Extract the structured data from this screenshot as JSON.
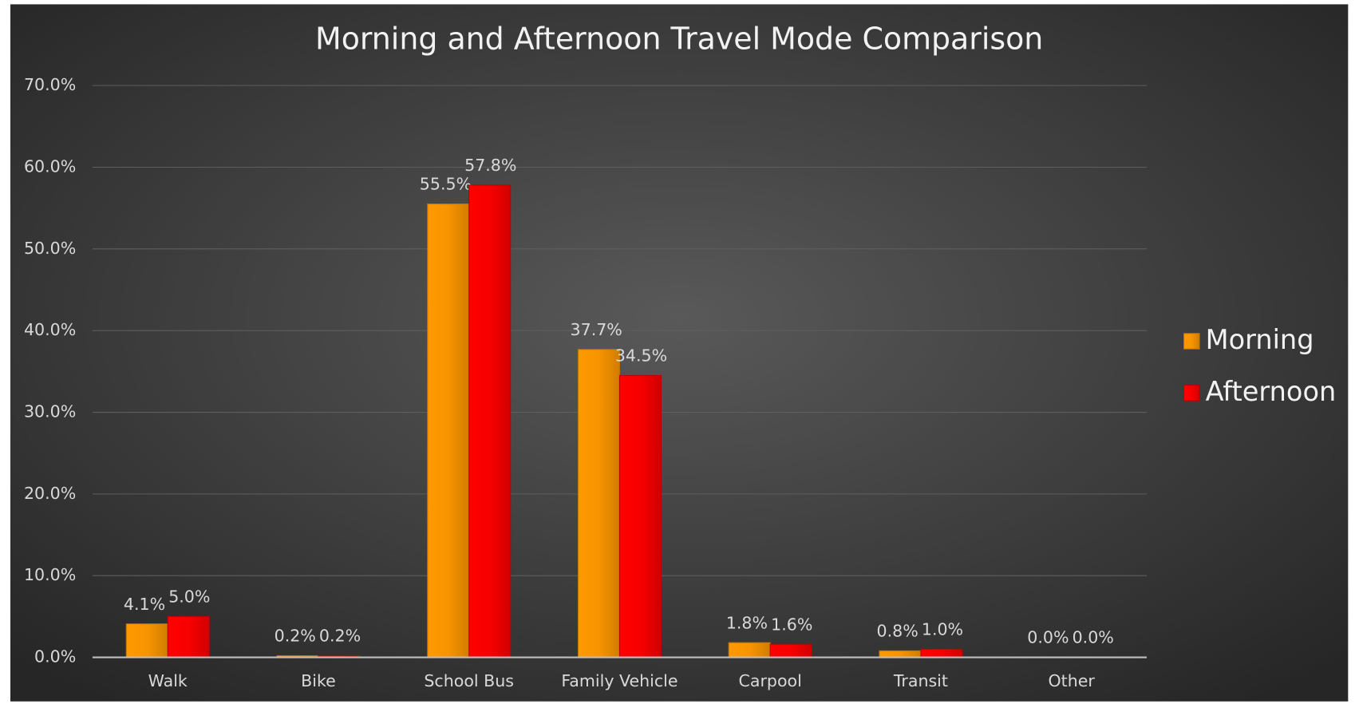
{
  "chart_data": {
    "type": "bar",
    "title": "Morning and Afternoon Travel Mode Comparison",
    "categories": [
      "Walk",
      "Bike",
      "School Bus",
      "Family Vehicle",
      "Carpool",
      "Transit",
      "Other"
    ],
    "series": [
      {
        "name": "Morning",
        "color": "#ff9900",
        "values": [
          4.1,
          0.2,
          55.5,
          37.7,
          1.8,
          0.8,
          0.0
        ],
        "value_labels": [
          "4.1%",
          "0.2%",
          "55.5%",
          "37.7%",
          "1.8%",
          "0.8%",
          "0.0%"
        ]
      },
      {
        "name": "Afternoon",
        "color": "#ff0000",
        "values": [
          5.0,
          0.2,
          57.8,
          34.5,
          1.6,
          1.0,
          0.0
        ],
        "value_labels": [
          "5.0%",
          "0.2%",
          "57.8%",
          "34.5%",
          "1.6%",
          "1.0%",
          "0.0%"
        ]
      }
    ],
    "ylim": [
      0,
      70
    ],
    "yticks": [
      {
        "value": 0,
        "label": "0.0%"
      },
      {
        "value": 10,
        "label": "10.0%"
      },
      {
        "value": 20,
        "label": "20.0%"
      },
      {
        "value": 30,
        "label": "30.0%"
      },
      {
        "value": 40,
        "label": "40.0%"
      },
      {
        "value": 50,
        "label": "50.0%"
      },
      {
        "value": 60,
        "label": "60.0%"
      },
      {
        "value": 70,
        "label": "70.0%"
      }
    ],
    "grid": true,
    "legend": "right"
  }
}
